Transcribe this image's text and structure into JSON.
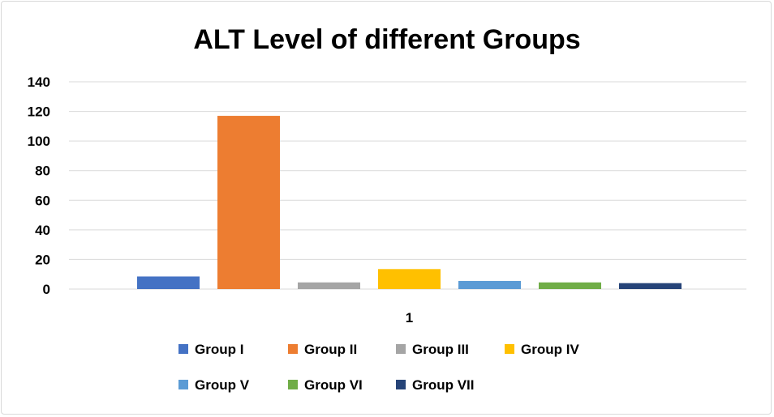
{
  "chart_data": {
    "type": "bar",
    "title": "ALT Level of different Groups",
    "categories": [
      "1"
    ],
    "ylim": [
      0,
      140
    ],
    "yticks": [
      0,
      20,
      40,
      60,
      80,
      100,
      120,
      140
    ],
    "grid": true,
    "legend_position": "bottom",
    "series": [
      {
        "name": "Group I",
        "values": [
          8.5
        ],
        "color": "#4472c4"
      },
      {
        "name": "Group II",
        "values": [
          117
        ],
        "color": "#ed7d31"
      },
      {
        "name": "Group III",
        "values": [
          4.5
        ],
        "color": "#a5a5a5"
      },
      {
        "name": "Group IV",
        "values": [
          13.5
        ],
        "color": "#ffc000"
      },
      {
        "name": "Group V",
        "values": [
          5.5
        ],
        "color": "#5b9bd5"
      },
      {
        "name": "Group VI",
        "values": [
          4.5
        ],
        "color": "#70ad47"
      },
      {
        "name": "Group VII",
        "values": [
          4
        ],
        "color": "#264478"
      }
    ]
  }
}
